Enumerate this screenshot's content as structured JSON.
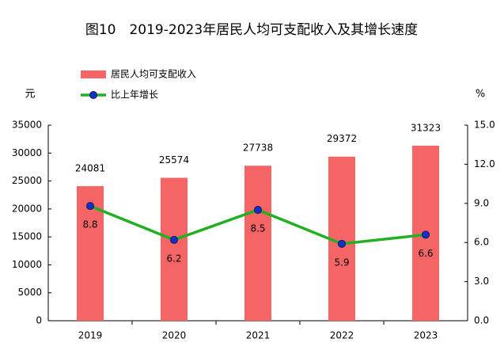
{
  "chart_data": {
    "type": "bar",
    "title": "图10　2019-2023年居民人均可支配收入及其增长速度",
    "y_label": "元",
    "y2_label": "%",
    "categories": [
      "2019",
      "2020",
      "2021",
      "2022",
      "2023"
    ],
    "series": [
      {
        "name": "居民人均可支配收入",
        "type": "bar",
        "color": "#f56565",
        "values": [
          24081,
          25574,
          27738,
          29372,
          31323
        ]
      },
      {
        "name": "比上年增长",
        "type": "line",
        "axis": "y2",
        "color": "#22b022",
        "marker_color": "#1530c8",
        "values": [
          8.8,
          6.2,
          8.5,
          5.9,
          6.6
        ]
      }
    ],
    "ylim": [
      0,
      35000
    ],
    "yticks": [
      0,
      5000,
      10000,
      15000,
      20000,
      25000,
      30000,
      35000
    ],
    "y2lim": [
      0,
      15
    ],
    "y2ticks": [
      {
        "value": 0,
        "label": "0.0"
      },
      {
        "value": 3,
        "label": "3.0"
      },
      {
        "value": 6,
        "label": "6.0"
      },
      {
        "value": 9,
        "label": "9.0"
      },
      {
        "value": 12,
        "label": "12.0"
      },
      {
        "value": 15,
        "label": "15.0"
      }
    ]
  }
}
